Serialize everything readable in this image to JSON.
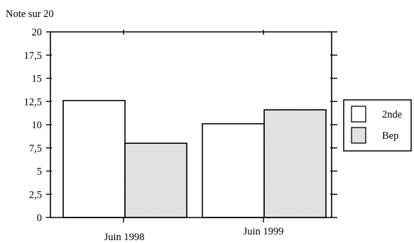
{
  "colors": {
    "series1_fill": "#ffffff",
    "series2_fill": "#d9d9d9",
    "stroke": "#000000"
  },
  "chart_data": {
    "type": "bar",
    "title": "",
    "xlabel": "",
    "ylabel": "Note sur 20",
    "categories": [
      "Juin 1998",
      "Juin 1999"
    ],
    "series": [
      {
        "name": "2nde",
        "values": [
          12.6,
          10.1
        ]
      },
      {
        "name": "Bep",
        "values": [
          8.0,
          11.6
        ]
      }
    ],
    "ylim": [
      0,
      20
    ],
    "yticks": [
      0,
      2.5,
      5,
      7.5,
      10,
      12.5,
      15,
      17.5,
      20
    ],
    "ytick_labels": [
      "0",
      "2,5",
      "5",
      "7,5",
      "10",
      "12,5",
      "15",
      "17,5",
      "20"
    ],
    "grid": false,
    "legend": "right"
  }
}
